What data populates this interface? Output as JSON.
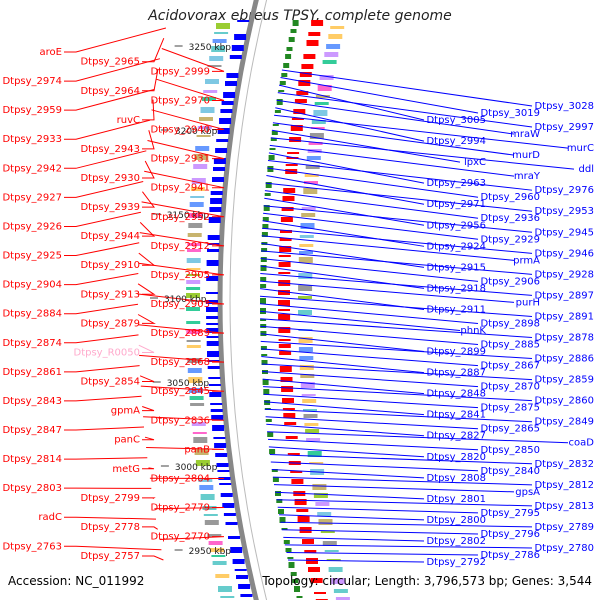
{
  "title": "Acidovorax ebreus TPSY, complete genome",
  "footer": {
    "accession": "Accession: NC_011992",
    "topology": "Topology: circular; Length: 3,796,573 bp; Genes: 3,544"
  },
  "ruler": [
    {
      "label": "3250 kbp"
    },
    {
      "label": "3200 kbp"
    },
    {
      "label": "3150 kbp"
    },
    {
      "label": "3100 kbp"
    },
    {
      "label": "3050 kbp"
    },
    {
      "label": "3000 kbp"
    },
    {
      "label": "2950 kbp"
    }
  ],
  "colors": {
    "forward": "#ff0000",
    "reverse": "#0000ff",
    "rna": "#ffaacc",
    "backbone": "#888888",
    "tick": "#228822"
  },
  "left_labels": [
    "aroE",
    "Dtpsy_2965",
    "Dtpsy_2999",
    "Dtpsy_2974",
    "Dtpsy_2964",
    "Dtpsy_2970",
    "Dtpsy_2959",
    "ruvC",
    "Dtpsy_2940",
    "Dtpsy_2933",
    "Dtpsy_2943",
    "Dtpsy_2931",
    "Dtpsy_2942",
    "Dtpsy_2930",
    "Dtpsy_2941",
    "Dtpsy_2927",
    "Dtpsy_2939",
    "Dtpsy_2952",
    "Dtpsy_2926",
    "Dtpsy_2944",
    "Dtpsy_2912",
    "Dtpsy_2925",
    "Dtpsy_2910",
    "Dtpsy_2905",
    "Dtpsy_2904",
    "Dtpsy_2913",
    "Dtpsy_2903",
    "Dtpsy_2884",
    "Dtpsy_2879",
    "Dtpsy_2889",
    "Dtpsy_2874",
    "Dtpsy_R0050",
    "Dtpsy_2868",
    "Dtpsy_2861",
    "Dtpsy_2854",
    "Dtpsy_2845",
    "Dtpsy_2843",
    "gpmA",
    "Dtpsy_2836",
    "Dtpsy_2847",
    "panC",
    "panB",
    "Dtpsy_2814",
    "metG",
    "Dtpsy_2804",
    "Dtpsy_2803",
    "Dtpsy_2799",
    "Dtpsy_2779",
    "radC",
    "Dtpsy_2778",
    "Dtpsy_2770",
    "Dtpsy_2763",
    "Dtpsy_2757"
  ],
  "right_labels": [
    "Dtpsy_3028",
    "Dtpsy_3019",
    "Dtpsy_3005",
    "Dtpsy_2997",
    "mraW",
    "Dtpsy_2994",
    "murC",
    "murD",
    "lpxC",
    "ddl",
    "mraY",
    "Dtpsy_2963",
    "Dtpsy_2976",
    "Dtpsy_2960",
    "Dtpsy_2971",
    "Dtpsy_2953",
    "Dtpsy_2936",
    "Dtpsy_2956",
    "Dtpsy_2945",
    "Dtpsy_2929",
    "Dtpsy_2924",
    "Dtpsy_2946",
    "prmA",
    "Dtpsy_2915",
    "Dtpsy_2928",
    "Dtpsy_2906",
    "Dtpsy_2918",
    "Dtpsy_2897",
    "purH",
    "Dtpsy_2911",
    "Dtpsy_2891",
    "Dtpsy_2898",
    "phnK",
    "Dtpsy_2878",
    "Dtpsy_2885",
    "Dtpsy_2899",
    "Dtpsy_2886",
    "Dtpsy_2867",
    "Dtpsy_2887",
    "Dtpsy_2859",
    "Dtpsy_2870",
    "Dtpsy_2848",
    "Dtpsy_2860",
    "Dtpsy_2875",
    "Dtpsy_2841",
    "Dtpsy_2849",
    "Dtpsy_2865",
    "Dtpsy_2827",
    "coaD",
    "Dtpsy_2850",
    "Dtpsy_2820",
    "Dtpsy_2832",
    "Dtpsy_2840",
    "Dtpsy_2808",
    "Dtpsy_2812",
    "gpsA",
    "Dtpsy_2801",
    "Dtpsy_2813",
    "Dtpsy_2795",
    "Dtpsy_2800",
    "Dtpsy_2789",
    "Dtpsy_2796",
    "Dtpsy_2802",
    "Dtpsy_2780",
    "Dtpsy_2786",
    "Dtpsy_2792"
  ]
}
